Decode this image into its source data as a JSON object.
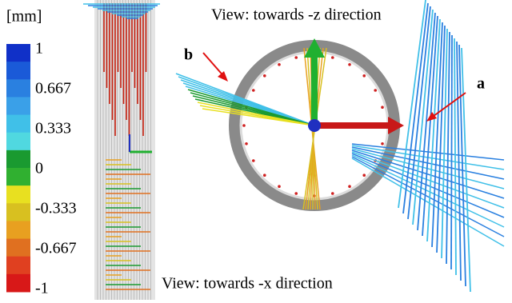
{
  "colorbar": {
    "unit": "[mm]",
    "labels": [
      "1",
      "0.667",
      "0.333",
      "0",
      "-0.333",
      "-0.667",
      "-1"
    ]
  },
  "views": {
    "z_view": "View: towards -z direction",
    "x_view": "View: towards -x direction"
  },
  "annotations": {
    "a": "a",
    "b": "b"
  }
}
